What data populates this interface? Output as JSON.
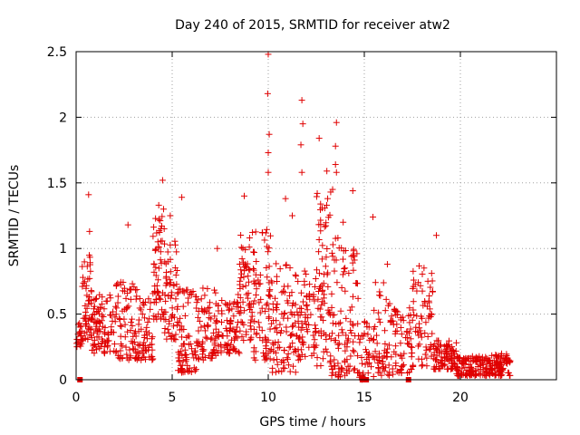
{
  "chart_data": {
    "type": "scatter",
    "title": "Day 240 of 2015, SRMTID for receiver atw2",
    "xlabel": "GPS time / hours",
    "ylabel": "SRMTID / TECUs",
    "xlim": [
      0,
      25
    ],
    "ylim": [
      0,
      2.5
    ],
    "xticks": [
      0,
      5,
      10,
      15,
      20
    ],
    "yticks": [
      0,
      0.5,
      1,
      1.5,
      2,
      2.5
    ],
    "xtick_labels": [
      "0",
      "5",
      "10",
      "15",
      "20"
    ],
    "ytick_labels": [
      "0",
      "0.5",
      "1",
      "1.5",
      "2",
      "2.5"
    ],
    "grid": true,
    "marker": "plus",
    "color": "#e00000",
    "highlights": [
      {
        "x": 10.0,
        "y": 2.48
      },
      {
        "x": 9.97,
        "y": 2.18
      },
      {
        "x": 11.75,
        "y": 2.13
      },
      {
        "x": 11.8,
        "y": 1.95
      },
      {
        "x": 13.55,
        "y": 1.96
      },
      {
        "x": 12.65,
        "y": 1.84
      },
      {
        "x": 10.05,
        "y": 1.87
      },
      {
        "x": 11.7,
        "y": 1.79
      },
      {
        "x": 13.5,
        "y": 1.78
      },
      {
        "x": 10.0,
        "y": 1.73
      },
      {
        "x": 13.5,
        "y": 1.64
      },
      {
        "x": 13.55,
        "y": 1.58
      },
      {
        "x": 11.75,
        "y": 1.58
      },
      {
        "x": 10.0,
        "y": 1.58
      },
      {
        "x": 13.05,
        "y": 1.59
      },
      {
        "x": 4.5,
        "y": 1.52
      },
      {
        "x": 13.35,
        "y": 1.45
      },
      {
        "x": 13.25,
        "y": 1.43
      },
      {
        "x": 14.4,
        "y": 1.44
      },
      {
        "x": 12.55,
        "y": 1.42
      },
      {
        "x": 0.65,
        "y": 1.41
      },
      {
        "x": 5.5,
        "y": 1.39
      },
      {
        "x": 8.75,
        "y": 1.4
      },
      {
        "x": 10.9,
        "y": 1.38
      },
      {
        "x": 4.3,
        "y": 1.33
      },
      {
        "x": 4.55,
        "y": 1.3
      },
      {
        "x": 4.9,
        "y": 1.25
      },
      {
        "x": 15.45,
        "y": 1.24
      },
      {
        "x": 11.25,
        "y": 1.25
      },
      {
        "x": 13.9,
        "y": 1.2
      },
      {
        "x": 2.7,
        "y": 1.18
      },
      {
        "x": 0.7,
        "y": 1.13
      },
      {
        "x": 9.7,
        "y": 1.12
      },
      {
        "x": 18.75,
        "y": 1.1
      },
      {
        "x": 7.35,
        "y": 1.0
      },
      {
        "x": 16.2,
        "y": 0.88
      }
    ],
    "clusters": [
      {
        "x": [
          0.0,
          0.3
        ],
        "y": [
          0.25,
          0.45
        ],
        "n": 20
      },
      {
        "x": [
          0.3,
          0.8
        ],
        "y": [
          0.3,
          0.95
        ],
        "n": 50
      },
      {
        "x": [
          0.8,
          2.0
        ],
        "y": [
          0.2,
          0.65
        ],
        "n": 90
      },
      {
        "x": [
          2.0,
          3.3
        ],
        "y": [
          0.15,
          0.75
        ],
        "n": 90
      },
      {
        "x": [
          3.3,
          4.0
        ],
        "y": [
          0.15,
          0.65
        ],
        "n": 50
      },
      {
        "x": [
          4.0,
          4.6
        ],
        "y": [
          0.45,
          1.25
        ],
        "n": 60
      },
      {
        "x": [
          4.6,
          5.3
        ],
        "y": [
          0.3,
          1.1
        ],
        "n": 60
      },
      {
        "x": [
          5.3,
          6.3
        ],
        "y": [
          0.05,
          0.7
        ],
        "n": 80
      },
      {
        "x": [
          6.3,
          7.5
        ],
        "y": [
          0.15,
          0.7
        ],
        "n": 80
      },
      {
        "x": [
          7.5,
          8.5
        ],
        "y": [
          0.2,
          0.65
        ],
        "n": 70
      },
      {
        "x": [
          8.5,
          9.2
        ],
        "y": [
          0.3,
          1.2
        ],
        "n": 60
      },
      {
        "x": [
          9.2,
          10.2
        ],
        "y": [
          0.15,
          1.15
        ],
        "n": 80
      },
      {
        "x": [
          10.2,
          11.5
        ],
        "y": [
          0.05,
          0.9
        ],
        "n": 90
      },
      {
        "x": [
          11.5,
          12.5
        ],
        "y": [
          0.15,
          0.85
        ],
        "n": 70
      },
      {
        "x": [
          12.5,
          13.3
        ],
        "y": [
          0.1,
          1.4
        ],
        "n": 70
      },
      {
        "x": [
          13.3,
          14.0
        ],
        "y": [
          0.02,
          1.1
        ],
        "n": 60
      },
      {
        "x": [
          14.0,
          14.7
        ],
        "y": [
          0.05,
          1.0
        ],
        "n": 50
      },
      {
        "x": [
          14.7,
          15.5
        ],
        "y": [
          0.0,
          0.45
        ],
        "n": 40
      },
      {
        "x": [
          15.5,
          16.5
        ],
        "y": [
          0.02,
          0.75
        ],
        "n": 60
      },
      {
        "x": [
          16.5,
          17.5
        ],
        "y": [
          0.05,
          0.55
        ],
        "n": 60
      },
      {
        "x": [
          17.5,
          18.6
        ],
        "y": [
          0.1,
          0.9
        ],
        "n": 70
      },
      {
        "x": [
          18.6,
          19.8
        ],
        "y": [
          0.08,
          0.3
        ],
        "n": 90
      },
      {
        "x": [
          19.8,
          21.5
        ],
        "y": [
          0.03,
          0.18
        ],
        "n": 120
      },
      {
        "x": [
          21.5,
          22.6
        ],
        "y": [
          0.03,
          0.2
        ],
        "n": 90
      }
    ],
    "zero_markers": [
      {
        "x": 0.2,
        "y": 0.0
      },
      {
        "x": 14.9,
        "y": 0.0
      },
      {
        "x": 15.1,
        "y": 0.0
      },
      {
        "x": 17.3,
        "y": 0.0
      }
    ]
  }
}
